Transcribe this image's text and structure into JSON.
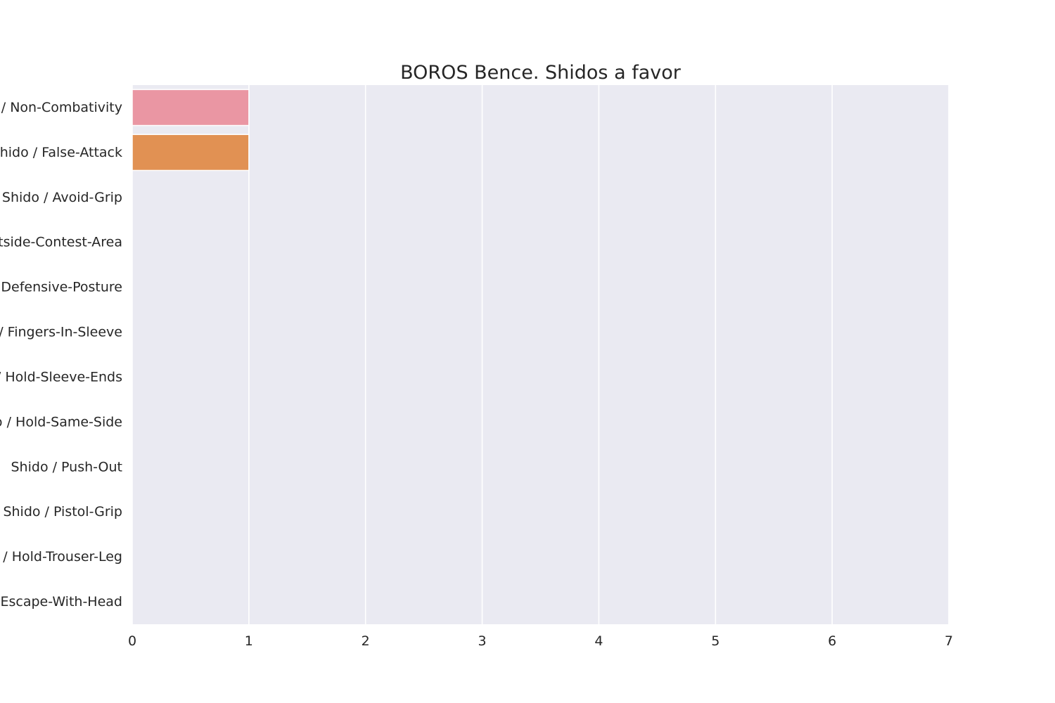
{
  "chart_data": {
    "type": "bar",
    "orientation": "horizontal",
    "title": "BOROS Bence. Shidos a favor",
    "xlabel": "",
    "ylabel": "",
    "categories": [
      "Shido / Non-Combativity",
      "Shido / False-Attack",
      "Shido / Avoid-Grip",
      "Shido / Outside-Contest-Area",
      "Shido / Defensive-Posture",
      "Shido / Fingers-In-Sleeve",
      "Shido / Hold-Sleeve-Ends",
      "Shido / Hold-Same-Side",
      "Shido / Push-Out",
      "Shido / Pistol-Grip",
      "Shido / Hold-Trouser-Leg",
      "Shido / Escape-With-Head"
    ],
    "values": [
      1,
      1,
      0,
      0,
      0,
      0,
      0,
      0,
      0,
      0,
      0,
      0
    ],
    "colors": [
      "#ea96a3",
      "#e19153",
      "#c39b46",
      "#a8a247",
      "#86a946",
      "#48b065",
      "#49ac93",
      "#4aa8a9",
      "#4ea5bd",
      "#7a9ee8",
      "#bf8fe9",
      "#e68ad4"
    ],
    "xlim": [
      0,
      7
    ],
    "xticks": [
      0,
      1,
      2,
      3,
      4,
      5,
      6,
      7
    ],
    "grid": true,
    "legend": "none"
  },
  "style": {
    "plot_background": "#eaeaf2",
    "grid_color": "#ffffff",
    "text_color": "#262626"
  }
}
